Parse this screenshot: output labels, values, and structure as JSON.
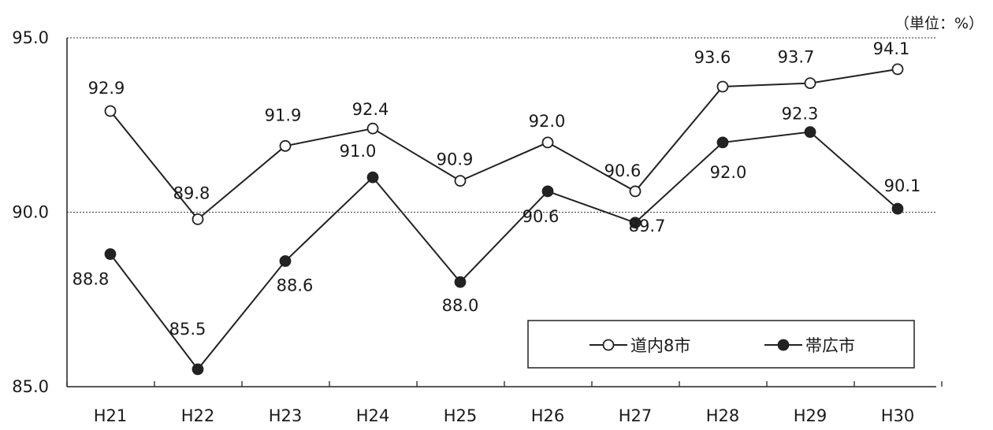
{
  "chart_data": {
    "type": "line",
    "unit_label": "（単位：%）",
    "categories": [
      "H21",
      "H22",
      "H23",
      "H24",
      "H25",
      "H26",
      "H27",
      "H28",
      "H29",
      "H30"
    ],
    "ylim": [
      85.0,
      95.0
    ],
    "yticks": [
      "85.0",
      "90.0",
      "95.0"
    ],
    "gridlines": [
      90.0,
      95.0
    ],
    "legend_position": "bottom-right",
    "series": [
      {
        "name": "道内8市",
        "marker": "open-circle",
        "color": "#222222",
        "values": [
          92.9,
          89.8,
          91.9,
          92.4,
          90.9,
          92.0,
          90.6,
          93.6,
          93.7,
          94.1
        ],
        "labels": [
          "92.9",
          "89.8",
          "91.9",
          "92.4",
          "90.9",
          "92.0",
          "90.6",
          "93.6",
          "93.7",
          "94.1"
        ]
      },
      {
        "name": "帯広市",
        "marker": "filled-circle",
        "color": "#222222",
        "values": [
          88.8,
          85.5,
          88.6,
          91.0,
          88.0,
          90.6,
          89.7,
          92.0,
          92.3,
          90.1
        ],
        "labels": [
          "88.8",
          "85.5",
          "88.6",
          "91.0",
          "88.0",
          "90.6",
          "89.7",
          "92.0",
          "92.3",
          "90.1"
        ]
      }
    ]
  }
}
